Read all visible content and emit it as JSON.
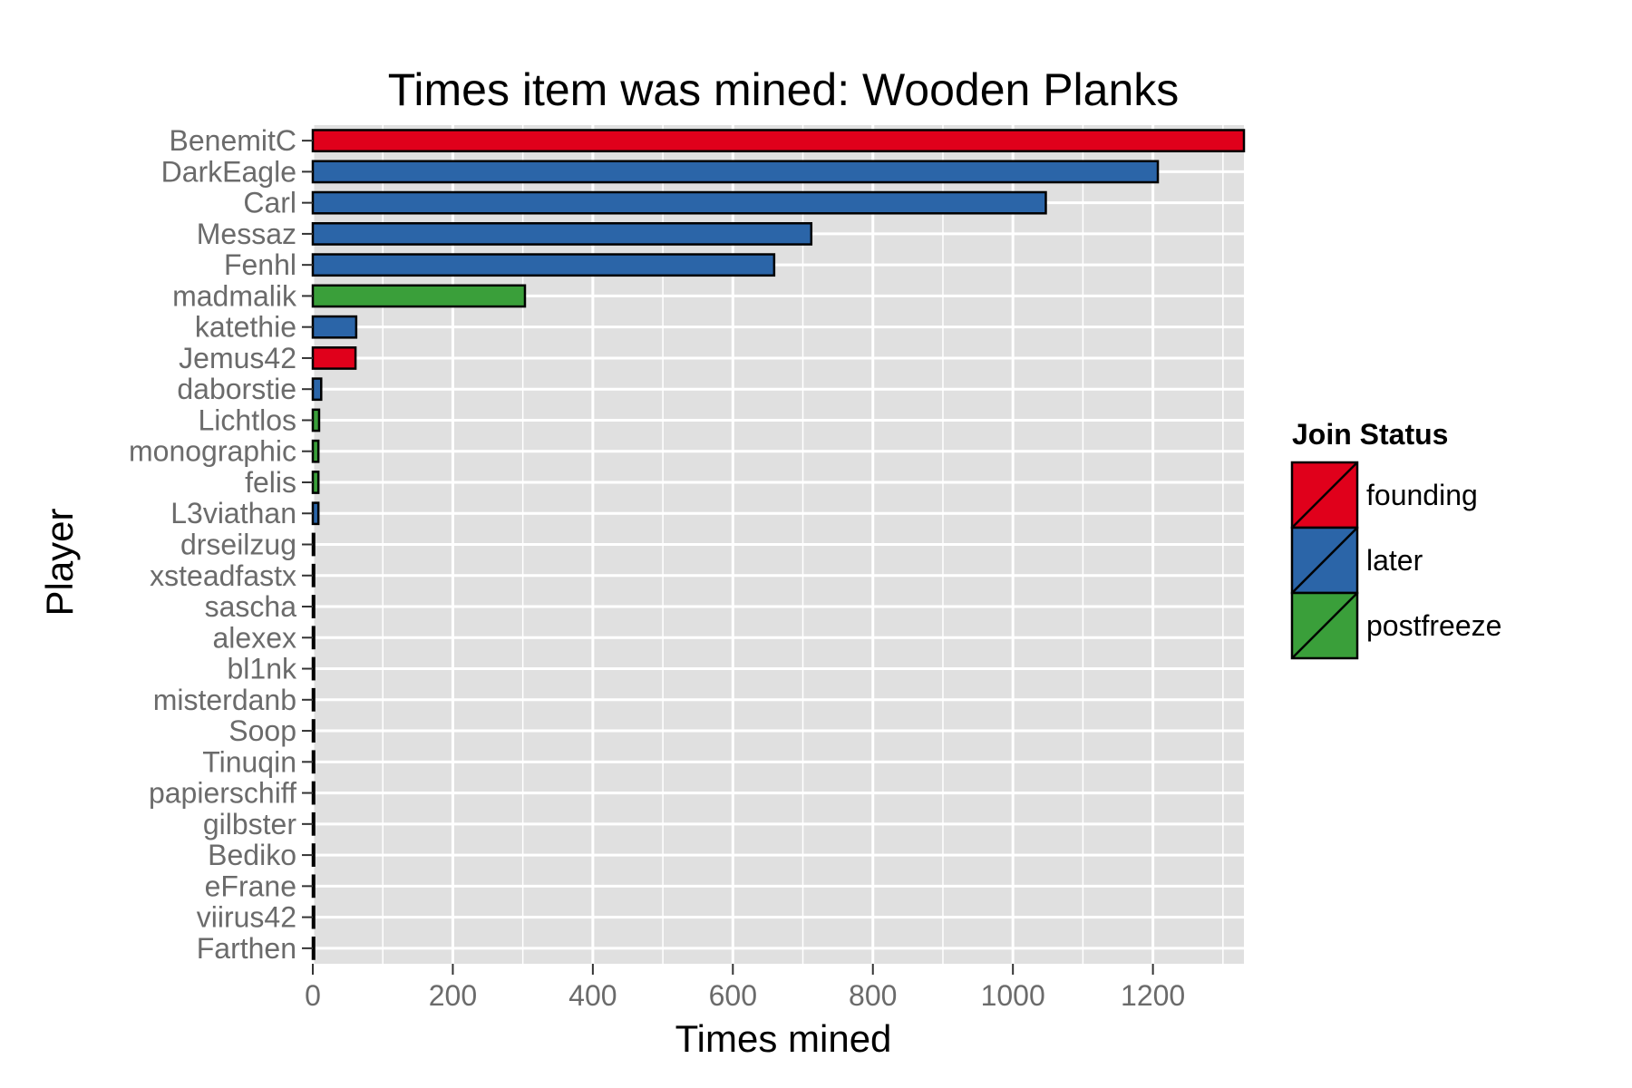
{
  "chart_data": {
    "type": "bar",
    "orientation": "horizontal",
    "title": "Times item was mined: Wooden Planks",
    "xlabel": "Times mined",
    "ylabel": "Player",
    "xlim": [
      0,
      1330
    ],
    "xticks": [
      0,
      200,
      400,
      600,
      800,
      1000,
      1200
    ],
    "grid": true,
    "legend": {
      "title": "Join Status",
      "placement": "right",
      "entries": [
        {
          "key": "founding",
          "label": "founding",
          "color": "#E0001B"
        },
        {
          "key": "later",
          "label": "later",
          "color": "#2B65A8"
        },
        {
          "key": "postfreeze",
          "label": "postfreeze",
          "color": "#3A9F3A"
        }
      ]
    },
    "bars": [
      {
        "player": "BenemitC",
        "value": 1330,
        "status": "founding"
      },
      {
        "player": "DarkEagle",
        "value": 1207,
        "status": "later"
      },
      {
        "player": "Carl",
        "value": 1047,
        "status": "later"
      },
      {
        "player": "Messaz",
        "value": 712,
        "status": "later"
      },
      {
        "player": "Fenhl",
        "value": 659,
        "status": "later"
      },
      {
        "player": "madmalik",
        "value": 303,
        "status": "postfreeze"
      },
      {
        "player": "katethie",
        "value": 62,
        "status": "later"
      },
      {
        "player": "Jemus42",
        "value": 61,
        "status": "founding"
      },
      {
        "player": "daborstie",
        "value": 12,
        "status": "later"
      },
      {
        "player": "Lichtlos",
        "value": 9,
        "status": "postfreeze"
      },
      {
        "player": "monographic",
        "value": 8,
        "status": "postfreeze"
      },
      {
        "player": "felis",
        "value": 8,
        "status": "postfreeze"
      },
      {
        "player": "L3viathan",
        "value": 8,
        "status": "later"
      },
      {
        "player": "drseilzug",
        "value": 2,
        "status": "later"
      },
      {
        "player": "xsteadfastx",
        "value": 2,
        "status": "later"
      },
      {
        "player": "sascha",
        "value": 2,
        "status": "later"
      },
      {
        "player": "alexex",
        "value": 2,
        "status": "later"
      },
      {
        "player": "bl1nk",
        "value": 2,
        "status": "later"
      },
      {
        "player": "misterdanb",
        "value": 2,
        "status": "later"
      },
      {
        "player": "Soop",
        "value": 2,
        "status": "later"
      },
      {
        "player": "Tinuqin",
        "value": 2,
        "status": "later"
      },
      {
        "player": "papierschiff",
        "value": 2,
        "status": "later"
      },
      {
        "player": "gilbster",
        "value": 2,
        "status": "later"
      },
      {
        "player": "Bediko",
        "value": 2,
        "status": "later"
      },
      {
        "player": "eFrane",
        "value": 2,
        "status": "later"
      },
      {
        "player": "viirus42",
        "value": 2,
        "status": "later"
      },
      {
        "player": "Farthen",
        "value": 2,
        "status": "later"
      }
    ],
    "colors": {
      "panel_background": "#E0E0E0",
      "gridline": "#FFFFFF",
      "bar_outline": "#000000"
    }
  }
}
